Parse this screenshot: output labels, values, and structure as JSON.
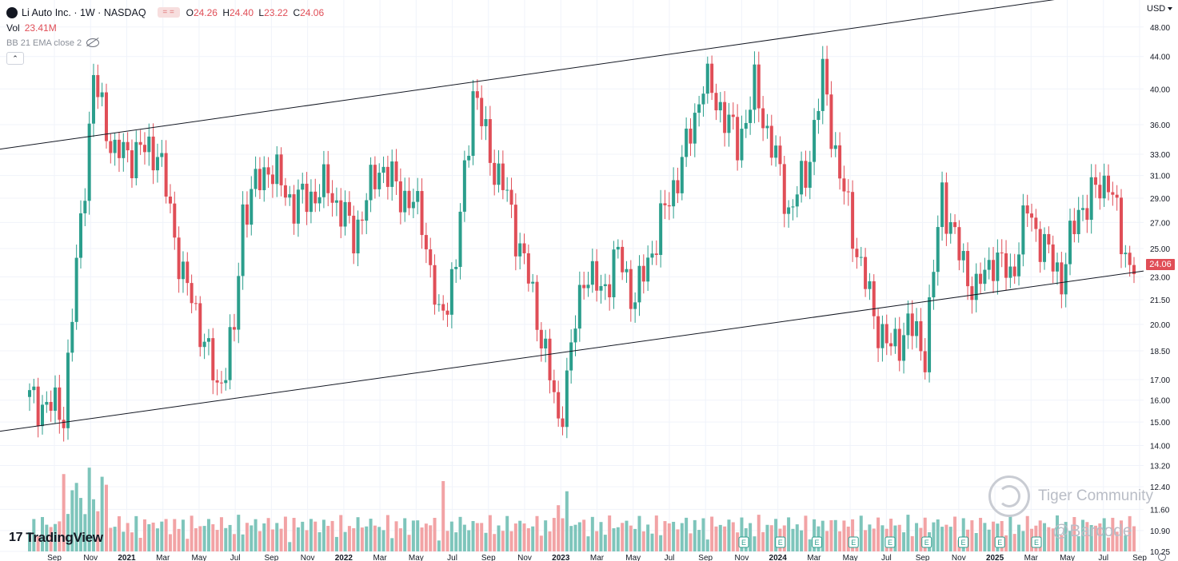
{
  "header": {
    "symbol_title": "Li Auto Inc. · 1W · NASDAQ",
    "flat_label": "= =",
    "ohlc": {
      "o_label": "O",
      "o": "24.26",
      "h_label": "H",
      "h": "24.40",
      "l_label": "L",
      "l": "23.22",
      "c_label": "C",
      "c": "24.06"
    },
    "vol_label": "Vol",
    "vol_value": "23.41M",
    "indicator": "BB 21 EMA close 2",
    "collapse": "⌃"
  },
  "currency": "USD",
  "last_price": "24.06",
  "watermark": {
    "tradingview": "TradingView",
    "tradingview_mark": "17",
    "tiger": "Tiger Community",
    "barcode": "@Barcode"
  },
  "colors": {
    "up": "#2b9e8c",
    "down": "#e04e57",
    "up_vol": "#7ec5bb",
    "down_vol": "#f2a3a5"
  },
  "chart_data": {
    "type": "candlestick",
    "interval": "1W",
    "yscale": "log",
    "ylim": [
      10.25,
      49
    ],
    "y_ticks": [
      "48.00",
      "44.00",
      "40.00",
      "36.00",
      "33.00",
      "31.00",
      "29.00",
      "27.00",
      "25.00",
      "23.00",
      "21.50",
      "20.00",
      "18.50",
      "17.00",
      "16.00",
      "15.00",
      "14.00",
      "13.20",
      "12.40",
      "11.60",
      "10.90",
      "10.25"
    ],
    "x_ticks": [
      "Sep",
      "Nov",
      "2021",
      "Mar",
      "May",
      "Jul",
      "Sep",
      "Nov",
      "2022",
      "Mar",
      "May",
      "Jul",
      "Sep",
      "Nov",
      "2023",
      "Mar",
      "May",
      "Jul",
      "Sep",
      "Nov",
      "2024",
      "Mar",
      "May",
      "Jul",
      "Sep",
      "Nov",
      "2025",
      "Mar",
      "May",
      "Jul",
      "Sep"
    ],
    "bar_anchors": [
      {
        "index": 0,
        "close": 16.0
      },
      {
        "index": 8,
        "close": 15.5
      },
      {
        "index": 15,
        "close": 41.0
      },
      {
        "index": 20,
        "close": 33.0
      },
      {
        "index": 30,
        "close": 33.5
      },
      {
        "index": 36,
        "close": 23.0
      },
      {
        "index": 40,
        "close": 20.0
      },
      {
        "index": 44,
        "close": 16.5
      },
      {
        "index": 48,
        "close": 19.5
      },
      {
        "index": 50,
        "close": 28.0
      },
      {
        "index": 56,
        "close": 32.0
      },
      {
        "index": 62,
        "close": 28.5
      },
      {
        "index": 70,
        "close": 30.0
      },
      {
        "index": 76,
        "close": 26.0
      },
      {
        "index": 82,
        "close": 32.0
      },
      {
        "index": 86,
        "close": 30.0
      },
      {
        "index": 92,
        "close": 27.5
      },
      {
        "index": 96,
        "close": 20.0
      },
      {
        "index": 100,
        "close": 24.0
      },
      {
        "index": 104,
        "close": 40.0
      },
      {
        "index": 108,
        "close": 33.0
      },
      {
        "index": 112,
        "close": 29.0
      },
      {
        "index": 116,
        "close": 24.0
      },
      {
        "index": 120,
        "close": 19.5
      },
      {
        "index": 124,
        "close": 15.0
      },
      {
        "index": 126,
        "close": 17.0
      },
      {
        "index": 130,
        "close": 23.5
      },
      {
        "index": 134,
        "close": 22.0
      },
      {
        "index": 138,
        "close": 24.5
      },
      {
        "index": 142,
        "close": 21.5
      },
      {
        "index": 146,
        "close": 25.0
      },
      {
        "index": 150,
        "close": 29.0
      },
      {
        "index": 154,
        "close": 33.5
      },
      {
        "index": 158,
        "close": 41.0
      },
      {
        "index": 162,
        "close": 38.0
      },
      {
        "index": 166,
        "close": 34.0
      },
      {
        "index": 170,
        "close": 40.0
      },
      {
        "index": 174,
        "close": 34.0
      },
      {
        "index": 178,
        "close": 28.0
      },
      {
        "index": 182,
        "close": 31.0
      },
      {
        "index": 186,
        "close": 41.5
      },
      {
        "index": 190,
        "close": 31.0
      },
      {
        "index": 194,
        "close": 25.0
      },
      {
        "index": 198,
        "close": 20.5
      },
      {
        "index": 202,
        "close": 18.5
      },
      {
        "index": 206,
        "close": 20.0
      },
      {
        "index": 210,
        "close": 18.5
      },
      {
        "index": 214,
        "close": 29.5
      },
      {
        "index": 218,
        "close": 24.5
      },
      {
        "index": 222,
        "close": 22.0
      },
      {
        "index": 226,
        "close": 24.5
      },
      {
        "index": 230,
        "close": 23.0
      },
      {
        "index": 234,
        "close": 28.0
      },
      {
        "index": 238,
        "close": 25.0
      },
      {
        "index": 242,
        "close": 23.0
      },
      {
        "index": 246,
        "close": 28.0
      },
      {
        "index": 250,
        "close": 29.5
      },
      {
        "index": 253,
        "close": 31.0
      },
      {
        "index": 256,
        "close": 25.5
      },
      {
        "index": 258,
        "close": 24.06
      }
    ],
    "trend_lines": [
      {
        "name": "upper-channel",
        "from": {
          "index": 0,
          "price": 33.5
        },
        "to": {
          "index": 259,
          "price": 54.0
        }
      },
      {
        "name": "lower-channel",
        "from": {
          "index": 0,
          "price": 14.6
        },
        "to": {
          "index": 259,
          "price": 23.4
        }
      }
    ],
    "earnings_markers": [
      "E",
      "E",
      "E",
      "E",
      "E",
      "E",
      "E",
      "E",
      "E"
    ],
    "price_marker": "24.06"
  }
}
